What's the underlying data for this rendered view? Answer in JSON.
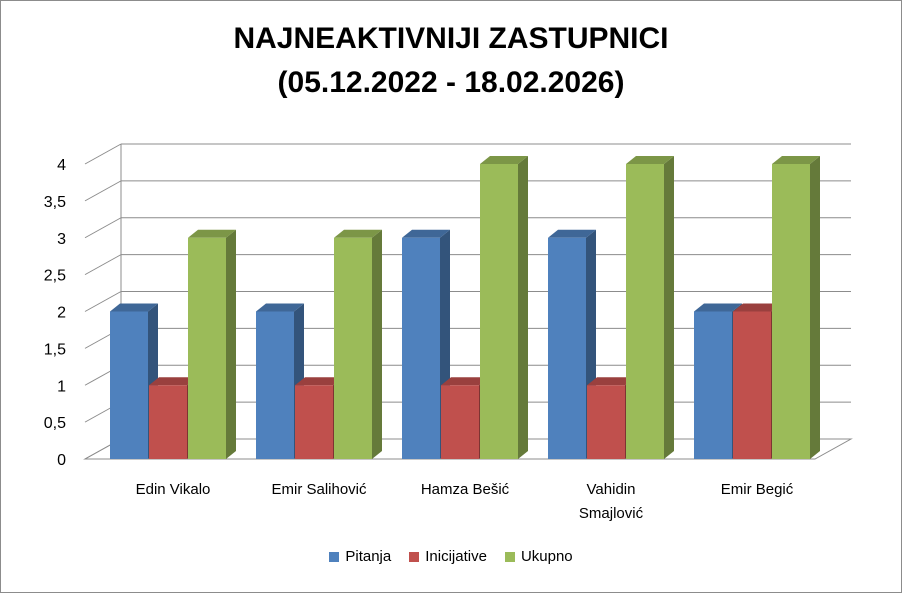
{
  "chart_data": {
    "type": "bar",
    "title_line1": "NAJNEAKTIVNIJI  ZASTUPNICI",
    "title_line2": "(05.12.2022 - 18.02.2026)",
    "categories": [
      [
        "Edin Vikalo"
      ],
      [
        "Emir Salihović"
      ],
      [
        "Hamza Bešić"
      ],
      [
        "Vahidin",
        "Smajlović"
      ],
      [
        "Emir Begić"
      ]
    ],
    "series": [
      {
        "name": "Pitanja",
        "color": "#4F81BD",
        "values": [
          2,
          2,
          3,
          3,
          2
        ]
      },
      {
        "name": "Inicijative",
        "color": "#C0504D",
        "values": [
          1,
          1,
          1,
          1,
          2
        ]
      },
      {
        "name": "Ukupno",
        "color": "#9BBB59",
        "values": [
          3,
          3,
          4,
          4,
          4
        ]
      }
    ],
    "ylim": [
      0,
      4
    ],
    "yticks": [
      "0",
      "0,5",
      "1",
      "1,5",
      "2",
      "2,5",
      "3",
      "3,5",
      "4"
    ],
    "grid": true,
    "legend_position": "bottom",
    "style": "3d-clustered-column"
  }
}
